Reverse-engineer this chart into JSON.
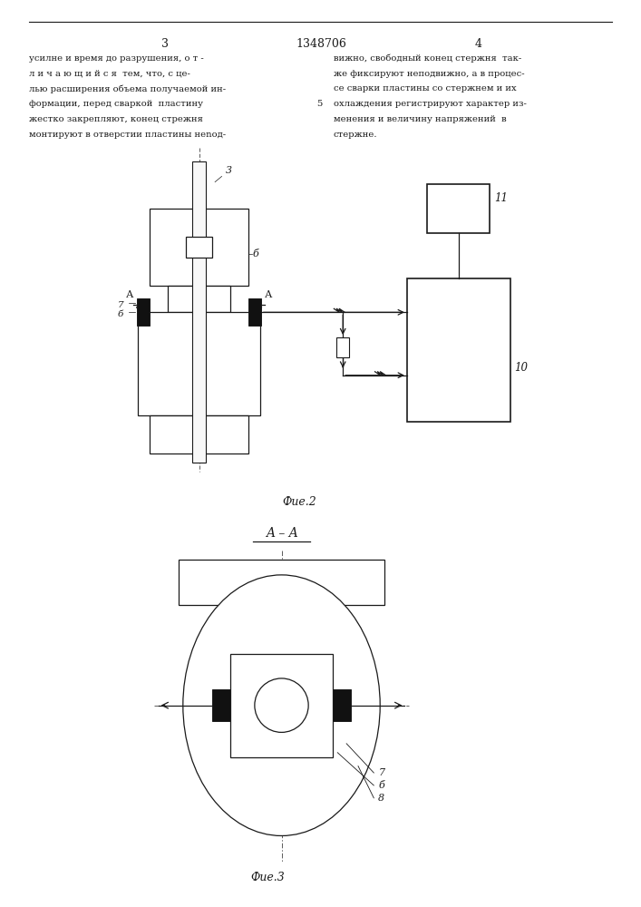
{
  "page_width": 7.07,
  "page_height": 10.0,
  "bg_color": "#ffffff",
  "text_color": "#1a1a1a",
  "line_color": "#1a1a1a",
  "hatch_color": "#1a1a1a",
  "header": {
    "page_left": "3",
    "title_center": "1348706",
    "page_right": "4"
  },
  "col1_text": [
    "усилне и время до разрушения, о т -",
    "л и ч а ю щ и й с я  тем, что, с це-",
    "лью расширения объема получаемой ин-",
    "формации, перед сваркой  пластину",
    "жестко закрепляют, конец стрежня",
    "монтируют в отверстии пластины неnод-"
  ],
  "col2_text": [
    "вижно, свободный конец стержня  так-",
    "же фиксируют неподвижно, а в процес-",
    "се сварки пластины со стержнем и их",
    "охлаждения регистрируют характер из-",
    "менения и величину напряжений  в",
    "стержне."
  ],
  "line_number": "5",
  "fig2_label": "Фие.2",
  "fig3_label": "Фие.3",
  "section_label": "A – A"
}
